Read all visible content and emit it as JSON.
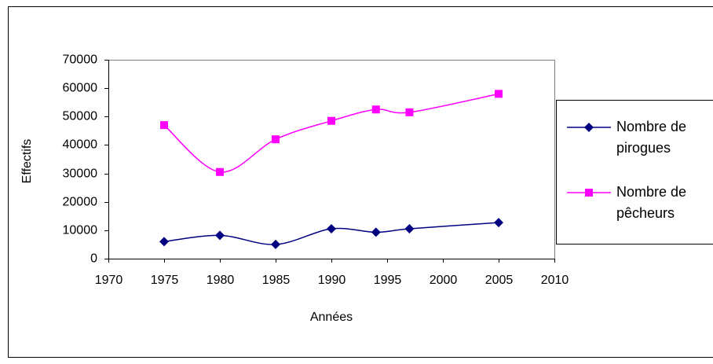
{
  "chart_data": {
    "type": "line",
    "xlabel": "Années",
    "ylabel": "Effectifs",
    "x": [
      1975,
      1980,
      1985,
      1990,
      1994,
      1997,
      2005
    ],
    "series": [
      {
        "name": "Nombre de pirogues",
        "color": "#000080",
        "marker": "diamond",
        "values": [
          6000,
          8200,
          5000,
          10500,
          9300,
          10500,
          12700
        ]
      },
      {
        "name": "Nombre de pêcheurs",
        "color": "#ff00ff",
        "marker": "square",
        "values": [
          47000,
          30500,
          42000,
          48500,
          52500,
          51500,
          58000
        ]
      }
    ],
    "xlim": [
      1970,
      2010
    ],
    "xticks": [
      1970,
      1975,
      1980,
      1985,
      1990,
      1995,
      2000,
      2005,
      2010
    ],
    "ylim": [
      0,
      70000
    ],
    "yticks": [
      0,
      10000,
      20000,
      30000,
      40000,
      50000,
      60000,
      70000
    ],
    "legend": "right"
  }
}
